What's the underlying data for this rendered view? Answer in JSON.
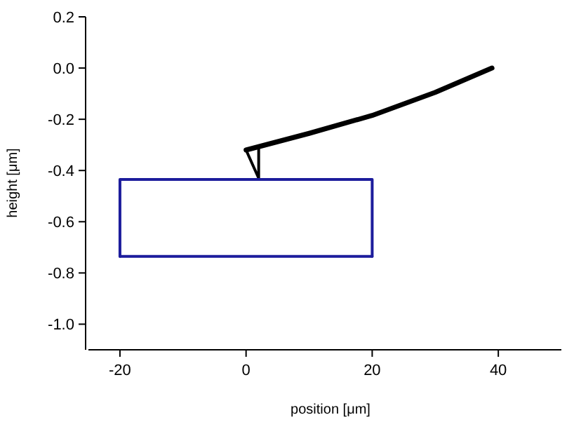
{
  "chart_data": {
    "type": "line",
    "xlabel": "position [μm]",
    "ylabel": "height [μm]",
    "xlim": [
      -25,
      50
    ],
    "ylim": [
      -1.1,
      0.2
    ],
    "xticks": [
      -20,
      0,
      20,
      40
    ],
    "yticks": [
      {
        "value": 0.2,
        "label": "0.2"
      },
      {
        "value": 0,
        "label": "0.0"
      },
      {
        "value": -0.2,
        "label": "-0.2"
      },
      {
        "value": -0.4,
        "label": "-0.4"
      },
      {
        "value": -0.6,
        "label": "-0.6"
      },
      {
        "value": -0.8,
        "label": "-0.8"
      },
      {
        "value": -1,
        "label": "-1.0"
      }
    ],
    "grid": false,
    "marker": "none",
    "line_style": "solid",
    "series": [
      {
        "color": "#000000",
        "x": [
          0,
          10,
          20,
          30,
          39
        ],
        "values": [
          -0.32,
          -0.255,
          -0.185,
          -0.095,
          0
        ]
      },
      {
        "color": "#000000",
        "x": [
          0,
          2,
          2
        ],
        "values": [
          -0.32,
          -0.43,
          -0.31
        ]
      },
      {
        "color": "#1c1c9c",
        "x": [
          -20,
          -20,
          20,
          20
        ],
        "values": [
          -0.735,
          -0.435,
          -0.435,
          -0.735
        ]
      },
      {
        "color": "#1c1c9c",
        "x": [
          -20,
          20
        ],
        "values": [
          -0.735,
          -0.735
        ]
      }
    ]
  }
}
